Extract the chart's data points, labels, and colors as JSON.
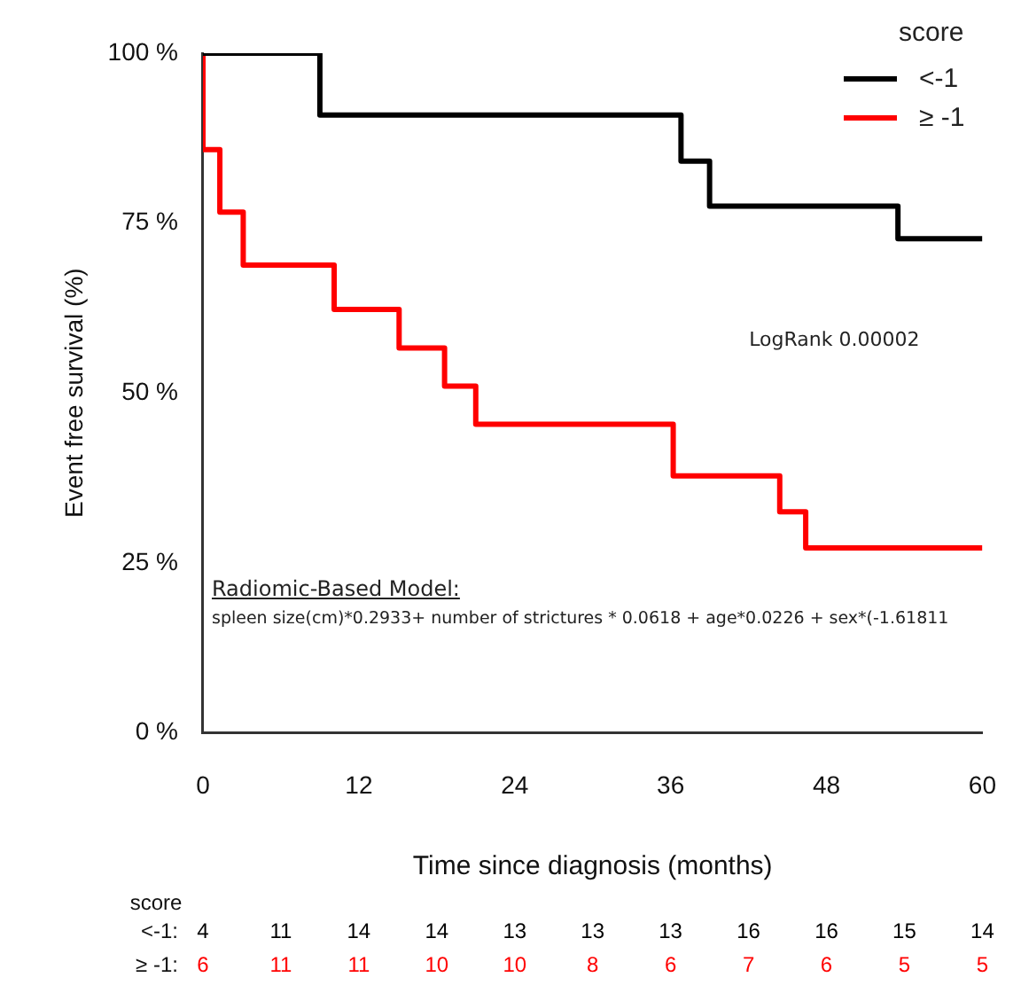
{
  "chart_data": {
    "type": "step",
    "xlabel": "Time since diagnosis (months)",
    "ylabel": "Event free survival (%)",
    "legend_title": "score",
    "legend": "top right",
    "grid": false,
    "marker": "none",
    "line_style": "solid",
    "xlim": [
      0,
      60
    ],
    "xticks": [
      0,
      12,
      24,
      36,
      48,
      60
    ],
    "ylim": [
      0,
      100
    ],
    "yticks": [
      {
        "value": 0,
        "label": "0 %"
      },
      {
        "value": 25,
        "label": "25 %"
      },
      {
        "value": 50,
        "label": "50 %"
      },
      {
        "value": 75,
        "label": "75 %"
      },
      {
        "value": 100,
        "label": "100 %"
      }
    ],
    "series": [
      {
        "name": "<-1",
        "color": "#000000",
        "x": [
          0,
          9,
          36.8,
          39,
          53.5,
          60
        ],
        "values": [
          100,
          90.9,
          84.1,
          77.5,
          72.7,
          72.7
        ]
      },
      {
        "name": "≥ -1",
        "color": "#ff0000",
        "x": [
          0,
          0,
          1.3,
          3.1,
          10.1,
          15.1,
          18.6,
          21,
          36.2,
          44.4,
          46.4,
          60
        ],
        "values": [
          100,
          85.8,
          76.6,
          68.8,
          62.3,
          56.6,
          51,
          45.4,
          37.8,
          32.5,
          27.2,
          27.2
        ]
      }
    ],
    "annotations": [
      "LogRank 0.00002",
      "Radiomic-Based Model:",
      "spleen size(cm)*0.2933+ number of strictures * 0.0618 + age*0.0226 + sex*(-1.61811",
      "score",
      "<-1:",
      "4",
      "11",
      "14",
      "14",
      "13",
      "13",
      "13",
      "16",
      "16",
      "15",
      "14",
      "≥ -1:",
      "6",
      "11",
      "11",
      "10",
      "10",
      "8",
      "6",
      "7",
      "6",
      "5",
      "5"
    ]
  }
}
